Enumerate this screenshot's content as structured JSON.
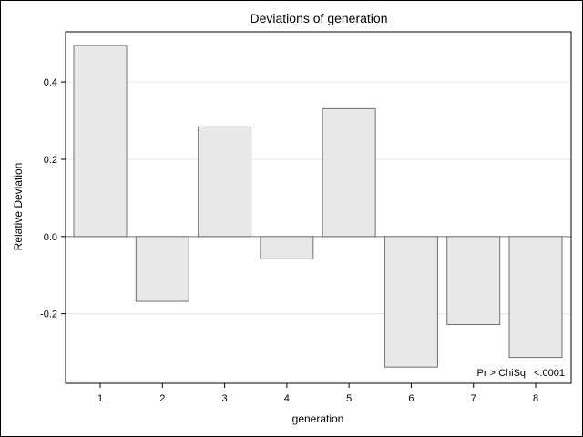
{
  "chart_data": {
    "type": "bar",
    "title": "Deviations of generation",
    "xlabel": "generation",
    "ylabel": "Relative Deviation",
    "categories": [
      "1",
      "2",
      "3",
      "4",
      "5",
      "6",
      "7",
      "8"
    ],
    "values": [
      0.495,
      -0.168,
      0.284,
      -0.058,
      0.331,
      -0.338,
      -0.228,
      -0.313
    ],
    "ylim": [
      -0.38,
      0.53
    ],
    "yticks": [
      -0.2,
      0.0,
      0.2,
      0.4
    ],
    "ytick_labels": [
      "-0.2",
      "0.0",
      "0.2",
      "0.4"
    ],
    "grid": "horizontal",
    "annotation_label": "Pr > ChiSq",
    "annotation_value": "<.0001",
    "colors": {
      "bar_fill": "#e8e8e8",
      "bar_stroke": "#707070",
      "zero_line": "#707070",
      "grid": "#e6e6e6"
    }
  }
}
